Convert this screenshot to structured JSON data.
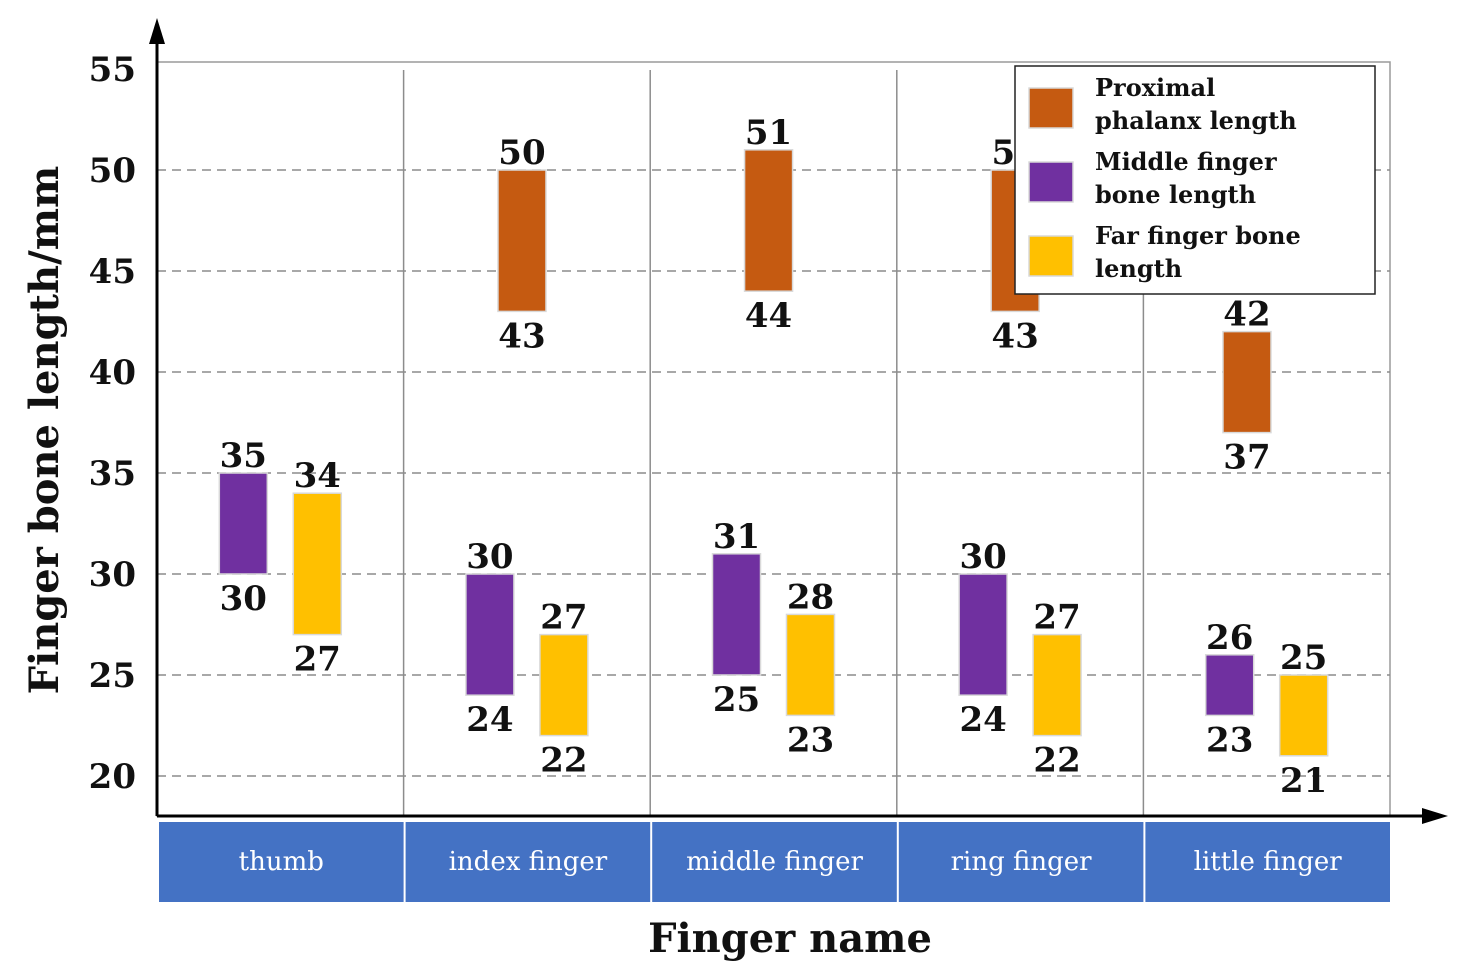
{
  "chart_data": {
    "type": "bar",
    "subtype": "floating-range",
    "xlabel": "Finger name",
    "ylabel": "Finger bone length/mm",
    "ylim": [
      20,
      55
    ],
    "yticks": [
      20,
      25,
      30,
      35,
      40,
      45,
      50,
      55
    ],
    "grid": "horizontal-dashed",
    "legend_position": "top-right",
    "categories": [
      "thumb",
      "index finger",
      "middle finger",
      "ring finger",
      "little finger"
    ],
    "series": [
      {
        "name": "Proximal phalanx length",
        "legend_lines": [
          "Proximal",
          "phalanx length"
        ],
        "color": "#C55A11",
        "ranges": [
          null,
          [
            43,
            50
          ],
          [
            44,
            51
          ],
          [
            43,
            50
          ],
          [
            37,
            42
          ]
        ]
      },
      {
        "name": "Middle finger bone length",
        "legend_lines": [
          "Middle finger",
          "bone length"
        ],
        "color": "#7030A0",
        "ranges": [
          [
            30,
            35
          ],
          [
            24,
            30
          ],
          [
            25,
            31
          ],
          [
            24,
            30
          ],
          [
            23,
            26
          ]
        ]
      },
      {
        "name": "Far finger bone length",
        "legend_lines": [
          "Far finger bone",
          "length"
        ],
        "color": "#FFC000",
        "ranges": [
          [
            27,
            34
          ],
          [
            22,
            27
          ],
          [
            23,
            28
          ],
          [
            22,
            27
          ],
          [
            21,
            25
          ]
        ]
      }
    ],
    "category_bar_color": "#4472C4"
  }
}
